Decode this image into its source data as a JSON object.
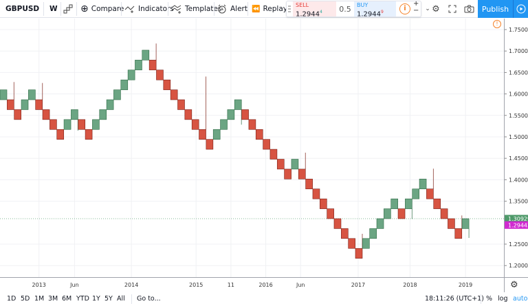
{
  "toolbar": {
    "symbol": "GBPUSD",
    "interval": "W",
    "compare": "Compare",
    "indicators": "Indicators",
    "templates": "Templates",
    "alert": "Alert",
    "replay": "Replay",
    "publish": "Publish"
  },
  "trade": {
    "sell_label": "SELL",
    "sell_price": "1.2944",
    "sell_sup": "4",
    "spread": "0.5",
    "buy_label": "BUY",
    "buy_price": "1.2944",
    "buy_sup": "9",
    "plus": "+",
    "minus": "−"
  },
  "colors": {
    "up": "#6ba583",
    "up_border": "#2e6b45",
    "down": "#d75442",
    "down_border": "#7a1f16",
    "accent": "#2196f3",
    "last_price": "#4f9a6a",
    "bid": "#d02bd0",
    "warning": "#f5832a"
  },
  "chart_data": {
    "type": "renko",
    "symbol": "GBPUSD",
    "box_size": 0.0231,
    "ylim": [
      1.18,
      1.77
    ],
    "grid": true,
    "y_ticks": [
      "1.75000",
      "1.70000",
      "1.65000",
      "1.60000",
      "1.55000",
      "1.50000",
      "1.45000",
      "1.40000",
      "1.35000",
      "1.25000",
      "1.20000"
    ],
    "y_tick_values": [
      1.75,
      1.7,
      1.65,
      1.6,
      1.55,
      1.5,
      1.45,
      1.4,
      1.35,
      1.25,
      1.2
    ],
    "x_ticks": [
      {
        "label": "2013",
        "brick": 5.0
      },
      {
        "label": "Jun",
        "brick": 10.0
      },
      {
        "label": "2014",
        "brick": 18.0
      },
      {
        "label": "2015",
        "brick": 27.1
      },
      {
        "label": "11",
        "brick": 32.0
      },
      {
        "label": "2016",
        "brick": 36.9
      },
      {
        "label": "Jun",
        "brick": 41.8
      },
      {
        "label": "2017",
        "brick": 49.9
      },
      {
        "label": "2018",
        "brick": 57.2
      },
      {
        "label": "2019",
        "brick": 65.0
      }
    ],
    "bricks": [
      [
        1.5865,
        1.6096
      ],
      [
        1.5865,
        1.5634
      ],
      [
        1.5634,
        1.5403
      ],
      [
        1.5634,
        1.5865
      ],
      [
        1.5865,
        1.6096
      ],
      [
        1.5865,
        1.5634
      ],
      [
        1.5634,
        1.5403
      ],
      [
        1.5403,
        1.5172
      ],
      [
        1.5172,
        1.4941
      ],
      [
        1.5172,
        1.5403
      ],
      [
        1.5403,
        1.5634
      ],
      [
        1.5403,
        1.5172
      ],
      [
        1.5172,
        1.4941
      ],
      [
        1.5172,
        1.5403
      ],
      [
        1.5403,
        1.5634
      ],
      [
        1.5634,
        1.5865
      ],
      [
        1.5865,
        1.6096
      ],
      [
        1.6096,
        1.6327
      ],
      [
        1.6327,
        1.6558
      ],
      [
        1.6558,
        1.6789
      ],
      [
        1.6789,
        1.702
      ],
      [
        1.6789,
        1.6558
      ],
      [
        1.6558,
        1.6327
      ],
      [
        1.6327,
        1.6096
      ],
      [
        1.6096,
        1.5865
      ],
      [
        1.5865,
        1.5634
      ],
      [
        1.5634,
        1.5403
      ],
      [
        1.5403,
        1.5172
      ],
      [
        1.5172,
        1.4941
      ],
      [
        1.4941,
        1.471
      ],
      [
        1.4941,
        1.5172
      ],
      [
        1.5172,
        1.5403
      ],
      [
        1.5403,
        1.5634
      ],
      [
        1.5634,
        1.5865
      ],
      [
        1.5634,
        1.5403
      ],
      [
        1.5403,
        1.5172
      ],
      [
        1.5172,
        1.4941
      ],
      [
        1.4941,
        1.471
      ],
      [
        1.471,
        1.4479
      ],
      [
        1.4479,
        1.4248
      ],
      [
        1.4248,
        1.4017
      ],
      [
        1.4248,
        1.4479
      ],
      [
        1.4248,
        1.4017
      ],
      [
        1.4017,
        1.3786
      ],
      [
        1.3786,
        1.3555
      ],
      [
        1.3555,
        1.3324
      ],
      [
        1.3324,
        1.3093
      ],
      [
        1.3093,
        1.2862
      ],
      [
        1.2862,
        1.2631
      ],
      [
        1.2631,
        1.24
      ],
      [
        1.24,
        1.2169
      ],
      [
        1.24,
        1.2631
      ],
      [
        1.2631,
        1.2862
      ],
      [
        1.2862,
        1.3093
      ],
      [
        1.3093,
        1.3324
      ],
      [
        1.3324,
        1.3555
      ],
      [
        1.3324,
        1.3093
      ],
      [
        1.3324,
        1.3555
      ],
      [
        1.3555,
        1.3786
      ],
      [
        1.3786,
        1.4017
      ],
      [
        1.3786,
        1.3555
      ],
      [
        1.3555,
        1.3324
      ],
      [
        1.3324,
        1.3093
      ],
      [
        1.3093,
        1.2862
      ],
      [
        1.2862,
        1.2631
      ],
      [
        1.2862,
        1.3093
      ]
    ],
    "wicks": [
      {
        "brick": 1,
        "high": 1.6277
      },
      {
        "brick": 5,
        "high": 1.6255
      },
      {
        "brick": 10,
        "low": 1.5144
      },
      {
        "brick": 21,
        "high": 1.7175
      },
      {
        "brick": 28,
        "high": 1.6405
      },
      {
        "brick": 33,
        "low": 1.5284
      },
      {
        "brick": 42,
        "high": 1.4631
      },
      {
        "brick": 50,
        "high": 1.274
      },
      {
        "brick": 57,
        "low": 1.3088
      },
      {
        "brick": 60,
        "high": 1.4258
      },
      {
        "brick": 64,
        "high": 1.3168
      },
      {
        "brick": 65,
        "low": 1.2644
      }
    ],
    "last_price": "1.30929",
    "last_price_value": 1.30929,
    "bid_price": "1.29443",
    "bid_price_value": 1.29443
  },
  "bottom": {
    "ranges": [
      "1D",
      "5D",
      "1M",
      "3M",
      "6M",
      "YTD",
      "1Y",
      "5Y",
      "All"
    ],
    "goto": "Go to...",
    "time": "18:11:26 (UTC+1)",
    "percent": "%",
    "log": "log",
    "auto": "auto"
  }
}
